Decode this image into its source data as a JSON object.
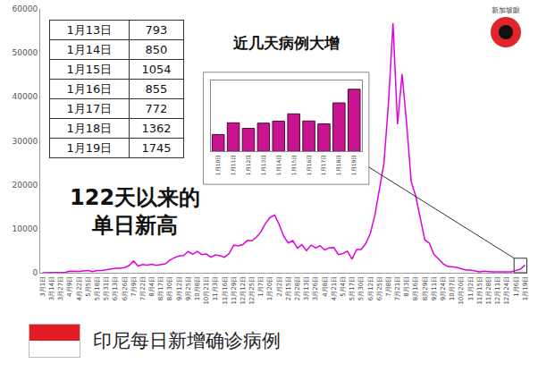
{
  "chart_data": [
    {
      "type": "line",
      "title": "印尼每日新增确诊病例",
      "annotation": [
        "122天以来的",
        "单日新高"
      ],
      "color": "#e000e0",
      "grid": false,
      "ylim": [
        0,
        60000
      ],
      "yticks": [
        0,
        10000,
        20000,
        30000,
        40000,
        50000,
        60000
      ],
      "categories": [
        "3月1日",
        null,
        "3月14日",
        null,
        "3月27日",
        null,
        "4月9日",
        null,
        "4月22日",
        null,
        "5月5日",
        null,
        "5月18日",
        null,
        "5月31日",
        null,
        "6月13日",
        null,
        "6月26日",
        null,
        "7月9日",
        null,
        "7月22日",
        null,
        "8月4日",
        null,
        "8月17日",
        null,
        "8月30日",
        null,
        "9月12日",
        null,
        "9月25日",
        null,
        "10月8日",
        null,
        "10月21日",
        null,
        "11月3日",
        null,
        "11月16日",
        null,
        "11月29日",
        null,
        "12月12日",
        null,
        "12月25日",
        null,
        "1月7日",
        null,
        "1月20日",
        null,
        "2月2日",
        null,
        "2月15日",
        null,
        "2月28日",
        null,
        "3月13日",
        null,
        "3月26日",
        null,
        "4月8日",
        null,
        "4月21日",
        null,
        "5月4日",
        null,
        "5月17日",
        null,
        "5月30日",
        null,
        "6月12日",
        null,
        "6月25日",
        null,
        "7月8日",
        null,
        "7月21日",
        null,
        "8月3日",
        null,
        "8月16日",
        null,
        "8月29日",
        null,
        "9月11日",
        null,
        "9月24日",
        null,
        "10月7日",
        null,
        "10月20日",
        null,
        "11月2日",
        null,
        "11月15日",
        null,
        "11月28日",
        null,
        "12月11日",
        null,
        "12月24日",
        null,
        "1月6日",
        null,
        "1月19日"
      ],
      "values": [
        0,
        2,
        27,
        60,
        153,
        113,
        337,
        297,
        283,
        415,
        484,
        233,
        496,
        526,
        700,
        993,
        1014,
        1041,
        1178,
        1624,
        2657,
        1522,
        1882,
        1748,
        1922,
        1687,
        1821,
        2037,
        2858,
        3444,
        3806,
        3891,
        4823,
        4174,
        4850,
        4127,
        4267,
        3520,
        4065,
        3880,
        3535,
        4360,
        6267,
        6089,
        6388,
        7354,
        7259,
        8074,
        9321,
        11278,
        12568,
        13094,
        10994,
        8242,
        6765,
        7300,
        5560,
        6390,
        5046,
        6279,
        5656,
        6142,
        5184,
        5656,
        5720,
        4143,
        4369,
        4891,
        3080,
        5296,
        5305,
        6594,
        8892,
        12990,
        18872,
        24836,
        38391,
        56757,
        33772,
        45203,
        33900,
        20709,
        17384,
        12408,
        7427,
        6727,
        4167,
        3145,
        2057,
        1414,
        1393,
        1233,
        914,
        611,
        612,
        480,
        203,
        351,
        250,
        191,
        203,
        190,
        216,
        194,
        533,
        793,
        1745
      ]
    },
    {
      "type": "bar",
      "title": "近几天病例大增",
      "color": "#c8158f",
      "grid": false,
      "tick_labels": "x",
      "ylim": [
        0,
        2000
      ],
      "categories": [
        "1月10日",
        "1月11日",
        "1月12日",
        "1月13日",
        "1月14日",
        "1月15日",
        "1月16日",
        "1月17日",
        "1月18日",
        "1月19日"
      ],
      "values": [
        473,
        802,
        646,
        793,
        850,
        1054,
        855,
        772,
        1362,
        1745
      ]
    }
  ],
  "table": {
    "rows": [
      [
        "1月13日",
        793
      ],
      [
        "1月14日",
        850
      ],
      [
        "1月15日",
        1054
      ],
      [
        "1月16日",
        855
      ],
      [
        "1月17日",
        772
      ],
      [
        "1月18日",
        1362
      ],
      [
        "1月19日",
        1745
      ]
    ]
  },
  "logo": "新加坡眼"
}
